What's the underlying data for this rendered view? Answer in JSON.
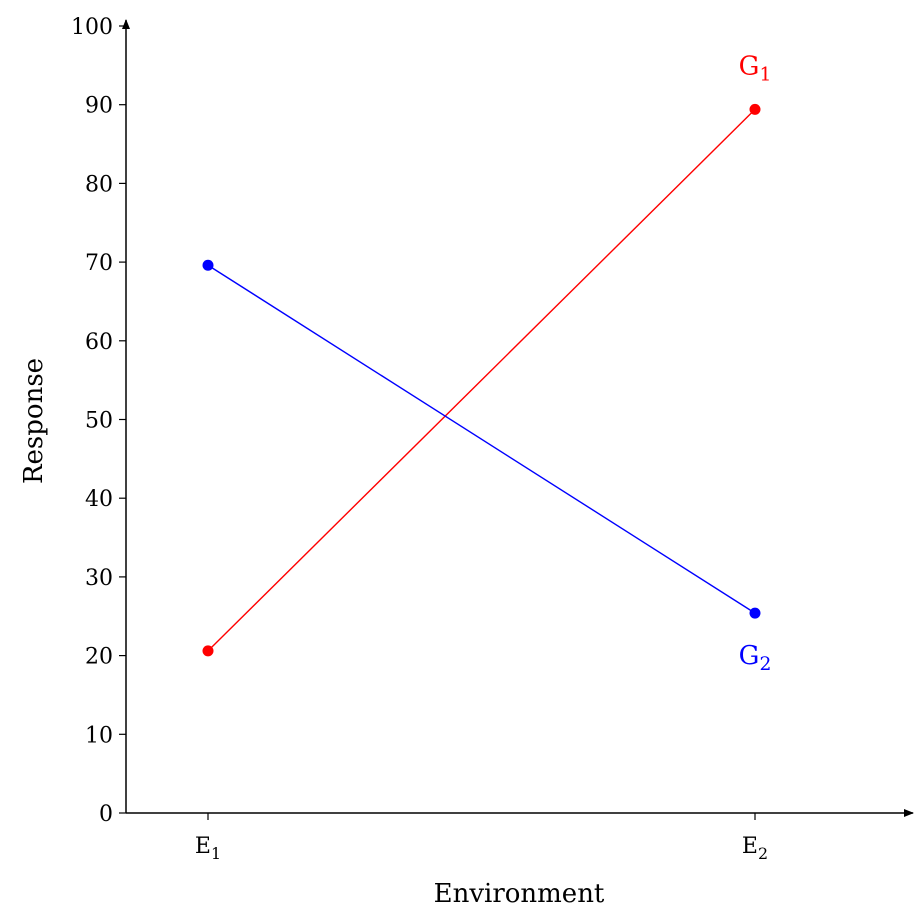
{
  "chart_data": {
    "type": "line",
    "title": "",
    "xlabel": "Environment",
    "ylabel": "Response",
    "ylim": [
      0,
      100
    ],
    "yticks": [
      0,
      10,
      20,
      30,
      40,
      50,
      60,
      70,
      80,
      90,
      100
    ],
    "categories": [
      {
        "base": "E",
        "sub": "1"
      },
      {
        "base": "E",
        "sub": "2"
      }
    ],
    "grid": false,
    "legend": "none",
    "series": [
      {
        "base": "G",
        "sub": "1",
        "color": "#ff0000",
        "values": [
          20.6,
          89.4
        ]
      },
      {
        "base": "G",
        "sub": "2",
        "color": "#0000ff",
        "values": [
          69.6,
          25.4
        ]
      }
    ]
  }
}
